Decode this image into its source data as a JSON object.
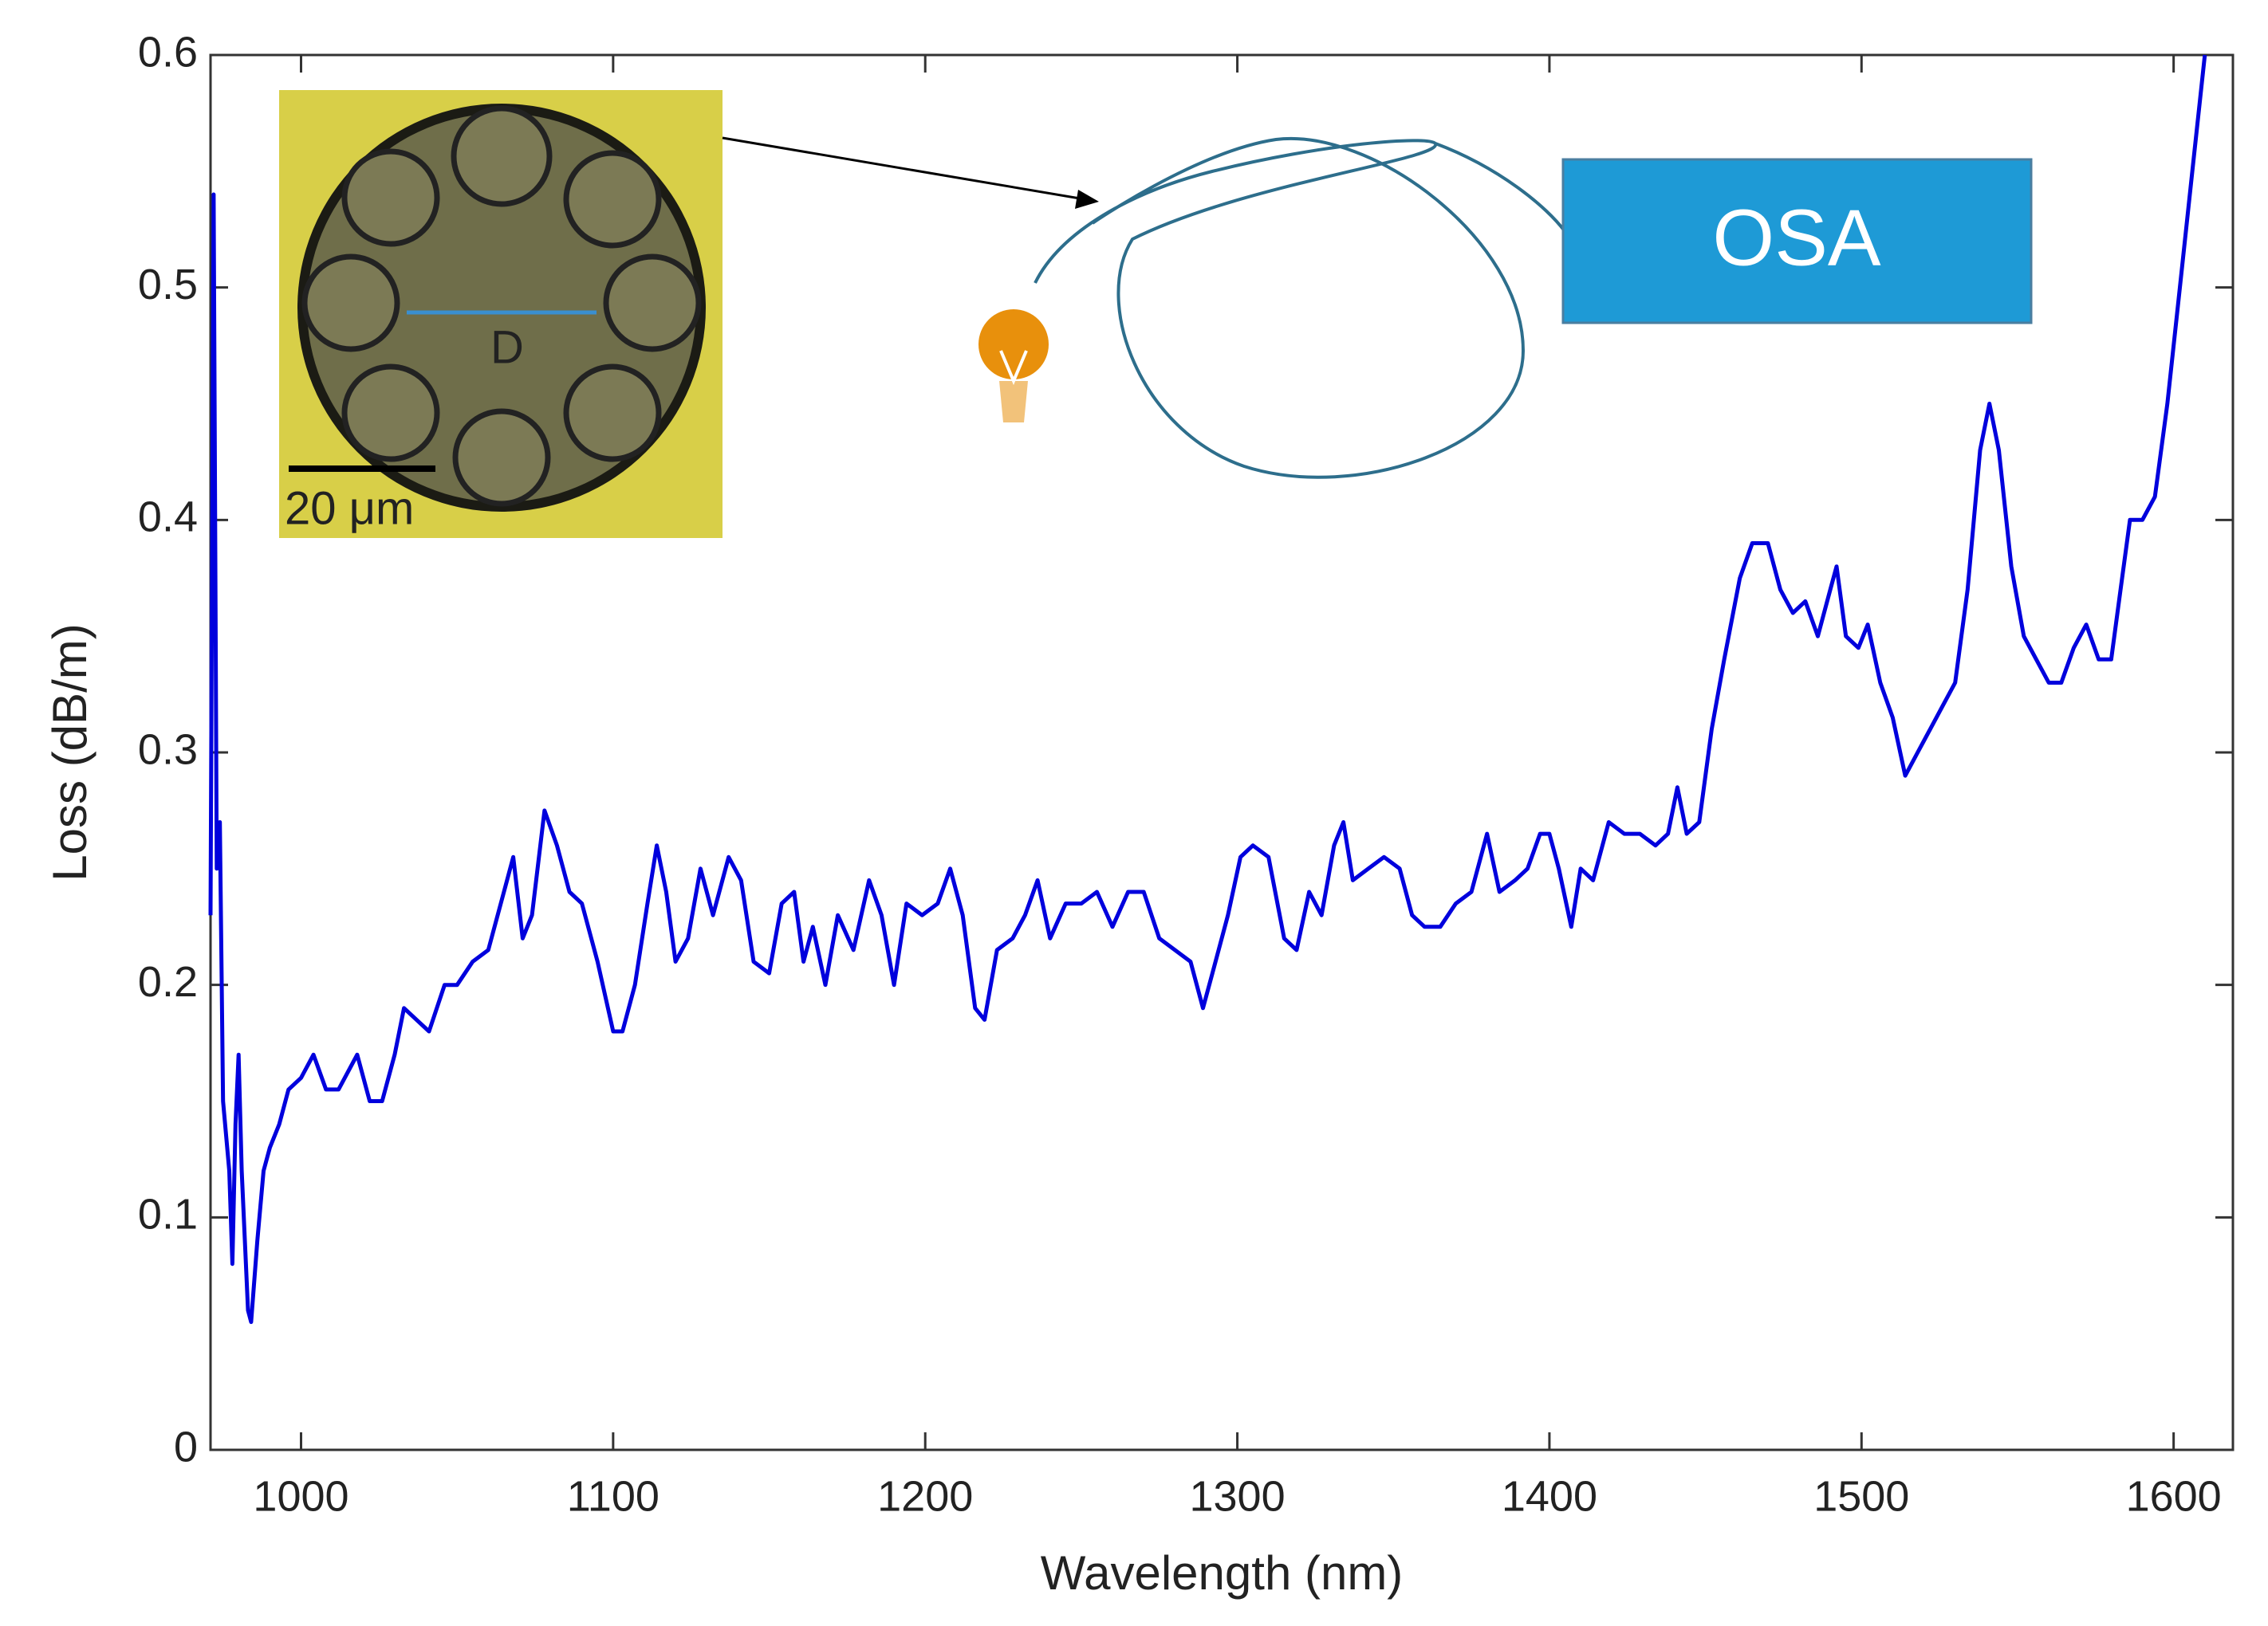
{
  "chart_data": {
    "type": "line",
    "xlabel": "Wavelength (nm)",
    "ylabel": "Loss (dB/m)",
    "xlim": [
      971,
      1619
    ],
    "ylim": [
      0,
      0.6
    ],
    "xticks": [
      1000,
      1100,
      1200,
      1300,
      1400,
      1500,
      1600
    ],
    "yticks": [
      0,
      0.1,
      0.2,
      0.3,
      0.4,
      0.5,
      0.6
    ],
    "annotations": [
      "D",
      "20 μm",
      "OSA"
    ],
    "x": [
      971,
      972,
      973,
      974,
      975,
      977,
      978,
      979,
      980,
      981,
      983,
      984,
      986,
      988,
      990,
      993,
      996,
      1000,
      1004,
      1008,
      1012,
      1018,
      1022,
      1026,
      1030,
      1033,
      1037,
      1041,
      1046,
      1050,
      1055,
      1060,
      1065,
      1068,
      1071,
      1074,
      1078,
      1082,
      1086,
      1090,
      1095,
      1100,
      1103,
      1107,
      1111,
      1114,
      1117,
      1120,
      1124,
      1128,
      1132,
      1137,
      1141,
      1145,
      1150,
      1154,
      1158,
      1161,
      1164,
      1168,
      1172,
      1177,
      1182,
      1186,
      1190,
      1194,
      1199,
      1204,
      1208,
      1212,
      1216,
      1219,
      1223,
      1228,
      1232,
      1236,
      1240,
      1245,
      1250,
      1255,
      1260,
      1265,
      1270,
      1275,
      1280,
      1285,
      1289,
      1292,
      1297,
      1301,
      1305,
      1310,
      1315,
      1319,
      1323,
      1327,
      1331,
      1334,
      1337,
      1342,
      1347,
      1352,
      1356,
      1360,
      1365,
      1370,
      1375,
      1380,
      1384,
      1389,
      1393,
      1397,
      1400,
      1403,
      1407,
      1410,
      1414,
      1419,
      1424,
      1429,
      1434,
      1438,
      1441,
      1444,
      1448,
      1452,
      1456,
      1461,
      1465,
      1470,
      1474,
      1478,
      1482,
      1486,
      1490,
      1492,
      1495,
      1499,
      1502,
      1506,
      1510,
      1514,
      1518,
      1522,
      1526,
      1530,
      1534,
      1538,
      1541,
      1544,
      1548,
      1552,
      1556,
      1560,
      1564,
      1568,
      1572,
      1576,
      1580,
      1583,
      1586,
      1590,
      1594,
      1598,
      1602,
      1606,
      1610
    ],
    "series": [
      {
        "name": "Loss",
        "color": "#0000dd",
        "values": [
          0.23,
          0.54,
          0.25,
          0.27,
          0.15,
          0.12,
          0.08,
          0.14,
          0.17,
          0.12,
          0.06,
          0.055,
          0.09,
          0.12,
          0.13,
          0.14,
          0.155,
          0.16,
          0.17,
          0.155,
          0.155,
          0.17,
          0.15,
          0.15,
          0.17,
          0.19,
          0.185,
          0.18,
          0.2,
          0.2,
          0.21,
          0.215,
          0.24,
          0.255,
          0.22,
          0.23,
          0.275,
          0.26,
          0.24,
          0.235,
          0.21,
          0.18,
          0.18,
          0.2,
          0.235,
          0.26,
          0.24,
          0.21,
          0.22,
          0.25,
          0.23,
          0.255,
          0.245,
          0.21,
          0.205,
          0.235,
          0.24,
          0.21,
          0.225,
          0.2,
          0.23,
          0.215,
          0.245,
          0.23,
          0.2,
          0.235,
          0.23,
          0.235,
          0.25,
          0.23,
          0.19,
          0.185,
          0.215,
          0.22,
          0.23,
          0.245,
          0.22,
          0.235,
          0.235,
          0.24,
          0.225,
          0.24,
          0.24,
          0.22,
          0.215,
          0.21,
          0.19,
          0.205,
          0.23,
          0.255,
          0.26,
          0.255,
          0.22,
          0.215,
          0.24,
          0.23,
          0.26,
          0.27,
          0.245,
          0.25,
          0.255,
          0.25,
          0.23,
          0.225,
          0.225,
          0.235,
          0.24,
          0.265,
          0.24,
          0.245,
          0.25,
          0.265,
          0.265,
          0.25,
          0.225,
          0.25,
          0.245,
          0.27,
          0.265,
          0.265,
          0.26,
          0.265,
          0.285,
          0.265,
          0.27,
          0.31,
          0.34,
          0.375,
          0.39,
          0.39,
          0.37,
          0.36,
          0.365,
          0.35,
          0.37,
          0.38,
          0.35,
          0.345,
          0.355,
          0.33,
          0.315,
          0.29,
          0.3,
          0.31,
          0.32,
          0.33,
          0.37,
          0.43,
          0.45,
          0.43,
          0.38,
          0.35,
          0.34,
          0.33,
          0.33,
          0.345,
          0.355,
          0.34,
          0.34,
          0.37,
          0.4,
          0.4,
          0.41,
          0.45,
          0.5,
          0.55,
          0.6
        ]
      }
    ]
  }
}
